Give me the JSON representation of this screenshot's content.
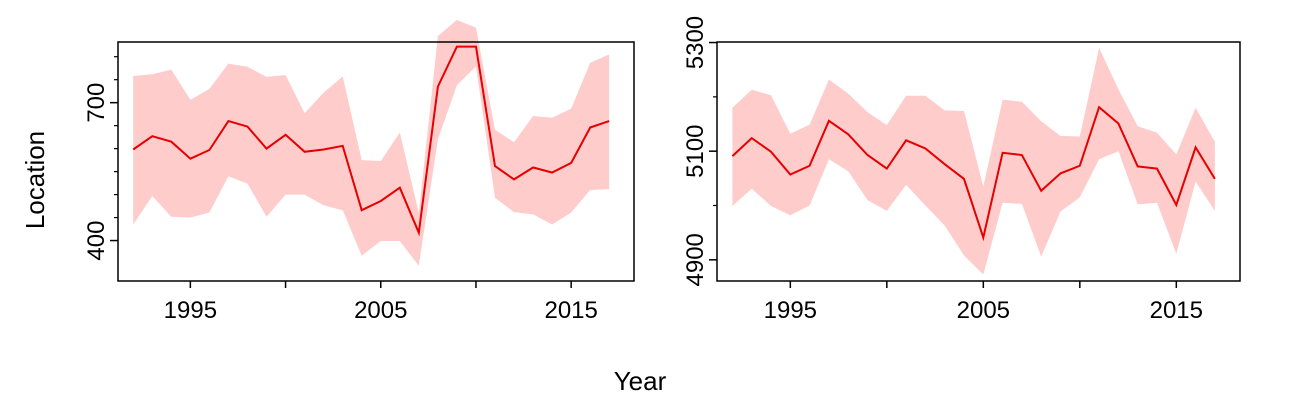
{
  "xlabel": "Year",
  "ylabel": "Location",
  "colors": {
    "line": "#e60000",
    "band": "#ffcccc",
    "axis": "#000000"
  },
  "chart_data": [
    {
      "type": "line",
      "xlim": [
        1991.2,
        2018.3
      ],
      "ylim": [
        312,
        832
      ],
      "x_ticks": [
        1995,
        2000,
        2005,
        2010,
        2015
      ],
      "x_tick_labels": [
        "1995",
        "",
        "2005",
        "",
        "2015"
      ],
      "y_major_ticks": [
        400,
        700
      ],
      "y_minor_ticks": [
        450,
        500,
        550,
        600,
        650,
        750,
        800
      ],
      "y_tick_labels": [
        "400",
        "700"
      ],
      "grid": false,
      "series": [
        {
          "x": [
            1992,
            1993,
            1994,
            1995,
            1996,
            1997,
            1998,
            1999,
            2000,
            2001,
            2002,
            2003,
            2004,
            2005,
            2006,
            2007,
            2008,
            2009,
            2010,
            2011,
            2012,
            2013,
            2014,
            2015,
            2016,
            2017
          ],
          "y": [
            598,
            627,
            615,
            578,
            597,
            660,
            648,
            600,
            630,
            593,
            598,
            606,
            466,
            486,
            515,
            417,
            735,
            822,
            822,
            562,
            533,
            559,
            548,
            569,
            646,
            660
          ],
          "lower": [
            435,
            497,
            452,
            450,
            461,
            540,
            524,
            452,
            500,
            500,
            477,
            466,
            367,
            399,
            399,
            345,
            620,
            738,
            779,
            493,
            462,
            457,
            435,
            461,
            510,
            512
          ],
          "upper": [
            758,
            762,
            772,
            706,
            730,
            785,
            778,
            756,
            760,
            677,
            722,
            757,
            575,
            573,
            635,
            460,
            845,
            880,
            863,
            641,
            614,
            671,
            667,
            687,
            787,
            805
          ]
        }
      ]
    },
    {
      "type": "line",
      "xlim": [
        1991.2,
        2018.3
      ],
      "ylim": [
        4861,
        5301
      ],
      "x_ticks": [
        1995,
        2000,
        2005,
        2010,
        2015
      ],
      "x_tick_labels": [
        "1995",
        "",
        "2005",
        "",
        "2015"
      ],
      "y_major_ticks": [
        4900,
        5100,
        5300
      ],
      "y_minor_ticks": [
        5000,
        5200
      ],
      "y_tick_labels": [
        "4900",
        "5100",
        "5300"
      ],
      "grid": false,
      "series": [
        {
          "x": [
            1992,
            1993,
            1994,
            1995,
            1996,
            1997,
            1998,
            1999,
            2000,
            2001,
            2002,
            2003,
            2004,
            2005,
            2006,
            2007,
            2008,
            2009,
            2010,
            2011,
            2012,
            2013,
            2014,
            2015,
            2016,
            2017
          ],
          "y": [
            5091,
            5124,
            5099,
            5057,
            5073,
            5156,
            5131,
            5093,
            5068,
            5120,
            5105,
            5076,
            5049,
            4941,
            5097,
            5093,
            5027,
            5059,
            5073,
            5181,
            5151,
            5072,
            5068,
            5001,
            5107,
            5049
          ],
          "lower": [
            4999,
            5031,
            4999,
            4982,
            5000,
            5085,
            5063,
            5010,
            4990,
            5038,
            5000,
            4963,
            4908,
            4873,
            5005,
            5003,
            4906,
            4989,
            5015,
            5085,
            5100,
            5002,
            5005,
            4911,
            5044,
            4990
          ],
          "upper": [
            5180,
            5213,
            5203,
            5132,
            5149,
            5232,
            5206,
            5172,
            5148,
            5202,
            5202,
            5175,
            5174,
            5035,
            5195,
            5191,
            5155,
            5128,
            5127,
            5290,
            5214,
            5146,
            5134,
            5094,
            5180,
            5117
          ]
        }
      ]
    }
  ]
}
